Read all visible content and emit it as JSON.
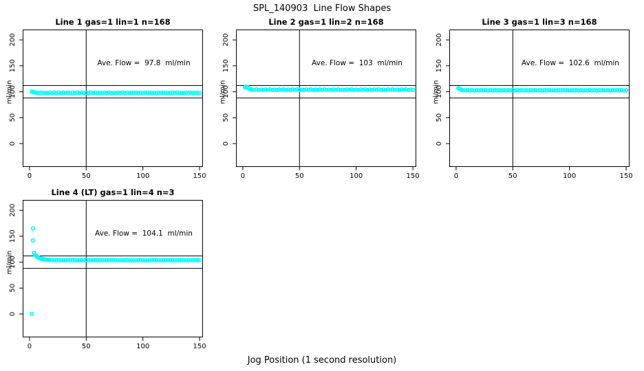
{
  "page": {
    "title": "SPL_140903  Line Flow Shapes",
    "xlabel": "Jog Position (1 second resolution)"
  },
  "colors": {
    "points": "#00FFFF",
    "lines": "#000000",
    "text": "#000000",
    "background": "#FFFFFF"
  },
  "chart_data": [
    {
      "type": "scatter",
      "title": "Line 1 gas=1 lin=1 n=168",
      "annotation": "Ave. Flow =  97.8  ml/min",
      "ave_flow_ml_min": 97.8,
      "ylabel": "ml/min",
      "marker": "open-circle",
      "x_ticks": [
        0,
        50,
        100,
        150
      ],
      "y_ticks": [
        0,
        50,
        100,
        150,
        200
      ],
      "xlim": [
        -6,
        153
      ],
      "ylim": [
        -45,
        220
      ],
      "ref_lines_h": [
        112,
        88
      ],
      "ref_line_v": 50,
      "points": [
        [
          2,
          100.3
        ],
        [
          3,
          99.8
        ],
        [
          4,
          99.0
        ],
        [
          5,
          98.5
        ],
        [
          6,
          98.3
        ],
        [
          8,
          97.8
        ],
        [
          10,
          98.4
        ],
        [
          12,
          97.7
        ],
        [
          14,
          98.1
        ],
        [
          16,
          97.6
        ],
        [
          18,
          98.3
        ],
        [
          20,
          97.8
        ],
        [
          22,
          98.4
        ],
        [
          24,
          97.7
        ],
        [
          26,
          98.1
        ],
        [
          28,
          97.6
        ],
        [
          30,
          98.3
        ],
        [
          32,
          97.8
        ],
        [
          34,
          98.4
        ],
        [
          36,
          97.7
        ],
        [
          38,
          98.1
        ],
        [
          40,
          97.6
        ],
        [
          42,
          98.3
        ],
        [
          44,
          97.8
        ],
        [
          46,
          98.4
        ],
        [
          48,
          97.7
        ],
        [
          50,
          98.1
        ],
        [
          52,
          97.6
        ],
        [
          54,
          98.3
        ],
        [
          56,
          97.8
        ],
        [
          58,
          98.4
        ],
        [
          60,
          97.7
        ],
        [
          62,
          98.1
        ],
        [
          64,
          97.6
        ],
        [
          66,
          98.3
        ],
        [
          68,
          97.8
        ],
        [
          70,
          98.4
        ],
        [
          72,
          97.7
        ],
        [
          74,
          98.1
        ],
        [
          76,
          97.6
        ],
        [
          78,
          98.3
        ],
        [
          80,
          97.8
        ],
        [
          82,
          98.4
        ],
        [
          84,
          97.7
        ],
        [
          86,
          98.1
        ],
        [
          88,
          97.6
        ],
        [
          90,
          98.3
        ],
        [
          92,
          97.8
        ],
        [
          94,
          98.4
        ],
        [
          96,
          97.7
        ],
        [
          98,
          98.1
        ],
        [
          100,
          97.6
        ],
        [
          102,
          98.3
        ],
        [
          104,
          97.8
        ],
        [
          106,
          98.4
        ],
        [
          108,
          97.7
        ],
        [
          110,
          98.1
        ],
        [
          112,
          97.6
        ],
        [
          114,
          98.3
        ],
        [
          116,
          97.8
        ],
        [
          118,
          98.4
        ],
        [
          120,
          97.7
        ],
        [
          122,
          98.1
        ],
        [
          124,
          97.6
        ],
        [
          126,
          98.3
        ],
        [
          128,
          97.8
        ],
        [
          130,
          98.4
        ],
        [
          132,
          97.7
        ],
        [
          134,
          98.1
        ],
        [
          136,
          97.6
        ],
        [
          138,
          98.3
        ],
        [
          140,
          97.8
        ],
        [
          142,
          98.4
        ],
        [
          144,
          97.7
        ],
        [
          146,
          98.1
        ],
        [
          148,
          97.6
        ],
        [
          150,
          98.0
        ]
      ]
    },
    {
      "type": "scatter",
      "title": "Line 2 gas=1 lin=2 n=168",
      "annotation": "Ave. Flow =  103  ml/min",
      "ave_flow_ml_min": 103,
      "ylabel": "ml/min",
      "marker": "open-circle",
      "x_ticks": [
        0,
        50,
        100,
        150
      ],
      "y_ticks": [
        0,
        50,
        100,
        150,
        200
      ],
      "xlim": [
        -6,
        153
      ],
      "ylim": [
        -45,
        220
      ],
      "ref_lines_h": [
        112,
        88
      ],
      "ref_line_v": 50,
      "points": [
        [
          2,
          108.5
        ],
        [
          3,
          110.0
        ],
        [
          4,
          109.2
        ],
        [
          5,
          106.8
        ],
        [
          6,
          105.4
        ],
        [
          7,
          104.6
        ],
        [
          8,
          104.3
        ],
        [
          10,
          103.8
        ],
        [
          12,
          104.4
        ],
        [
          14,
          103.7
        ],
        [
          16,
          104.1
        ],
        [
          18,
          103.6
        ],
        [
          20,
          104.3
        ],
        [
          22,
          103.8
        ],
        [
          24,
          104.4
        ],
        [
          26,
          103.7
        ],
        [
          28,
          104.1
        ],
        [
          30,
          103.6
        ],
        [
          32,
          104.3
        ],
        [
          34,
          103.8
        ],
        [
          36,
          104.4
        ],
        [
          38,
          103.7
        ],
        [
          40,
          104.1
        ],
        [
          42,
          103.6
        ],
        [
          44,
          104.3
        ],
        [
          46,
          103.8
        ],
        [
          48,
          104.4
        ],
        [
          50,
          103.7
        ],
        [
          52,
          104.1
        ],
        [
          54,
          103.6
        ],
        [
          56,
          104.3
        ],
        [
          58,
          103.8
        ],
        [
          60,
          104.4
        ],
        [
          62,
          103.7
        ],
        [
          64,
          104.1
        ],
        [
          66,
          103.6
        ],
        [
          68,
          104.3
        ],
        [
          70,
          103.8
        ],
        [
          72,
          104.4
        ],
        [
          74,
          103.7
        ],
        [
          76,
          104.1
        ],
        [
          78,
          103.6
        ],
        [
          80,
          104.3
        ],
        [
          82,
          103.8
        ],
        [
          84,
          104.4
        ],
        [
          86,
          103.7
        ],
        [
          88,
          104.1
        ],
        [
          90,
          103.6
        ],
        [
          92,
          104.3
        ],
        [
          94,
          103.8
        ],
        [
          96,
          104.4
        ],
        [
          98,
          103.7
        ],
        [
          100,
          104.1
        ],
        [
          102,
          103.6
        ],
        [
          104,
          104.3
        ],
        [
          106,
          103.8
        ],
        [
          108,
          104.4
        ],
        [
          110,
          103.7
        ],
        [
          112,
          104.1
        ],
        [
          114,
          103.6
        ],
        [
          116,
          104.3
        ],
        [
          118,
          103.8
        ],
        [
          120,
          104.4
        ],
        [
          122,
          103.7
        ],
        [
          124,
          104.1
        ],
        [
          126,
          103.6
        ],
        [
          128,
          104.3
        ],
        [
          130,
          103.8
        ],
        [
          132,
          104.4
        ],
        [
          134,
          103.7
        ],
        [
          136,
          104.1
        ],
        [
          138,
          103.6
        ],
        [
          140,
          104.3
        ],
        [
          142,
          103.8
        ],
        [
          144,
          104.4
        ],
        [
          146,
          103.7
        ],
        [
          148,
          104.1
        ],
        [
          150,
          103.9
        ]
      ]
    },
    {
      "type": "scatter",
      "title": "Line 3 gas=1 lin=3 n=168",
      "annotation": "Ave. Flow =  102.6  ml/min",
      "ave_flow_ml_min": 102.6,
      "ylabel": "ml/min",
      "marker": "open-circle",
      "x_ticks": [
        0,
        50,
        100,
        150
      ],
      "y_ticks": [
        0,
        50,
        100,
        150,
        200
      ],
      "xlim": [
        -6,
        153
      ],
      "ylim": [
        -45,
        220
      ],
      "ref_lines_h": [
        112,
        88
      ],
      "ref_line_v": 50,
      "points": [
        [
          2,
          106.8
        ],
        [
          3,
          105.6
        ],
        [
          4,
          104.4
        ],
        [
          5,
          103.8
        ],
        [
          6,
          103.3
        ],
        [
          8,
          102.8
        ],
        [
          10,
          103.4
        ],
        [
          12,
          102.7
        ],
        [
          14,
          103.1
        ],
        [
          16,
          102.6
        ],
        [
          18,
          103.3
        ],
        [
          20,
          102.8
        ],
        [
          22,
          103.4
        ],
        [
          24,
          102.7
        ],
        [
          26,
          103.1
        ],
        [
          28,
          102.6
        ],
        [
          30,
          103.3
        ],
        [
          32,
          102.8
        ],
        [
          34,
          103.4
        ],
        [
          36,
          102.7
        ],
        [
          38,
          103.1
        ],
        [
          40,
          102.6
        ],
        [
          42,
          103.3
        ],
        [
          44,
          102.8
        ],
        [
          46,
          103.4
        ],
        [
          48,
          102.7
        ],
        [
          50,
          103.1
        ],
        [
          52,
          102.6
        ],
        [
          54,
          103.3
        ],
        [
          56,
          102.8
        ],
        [
          58,
          103.4
        ],
        [
          60,
          102.7
        ],
        [
          62,
          103.1
        ],
        [
          64,
          102.6
        ],
        [
          66,
          103.3
        ],
        [
          68,
          102.8
        ],
        [
          70,
          103.4
        ],
        [
          72,
          102.7
        ],
        [
          74,
          103.1
        ],
        [
          76,
          102.6
        ],
        [
          78,
          103.3
        ],
        [
          80,
          102.8
        ],
        [
          82,
          103.4
        ],
        [
          84,
          102.7
        ],
        [
          86,
          103.1
        ],
        [
          88,
          102.6
        ],
        [
          90,
          103.3
        ],
        [
          92,
          102.8
        ],
        [
          94,
          103.4
        ],
        [
          96,
          102.7
        ],
        [
          98,
          103.1
        ],
        [
          100,
          102.6
        ],
        [
          102,
          103.3
        ],
        [
          104,
          102.8
        ],
        [
          106,
          103.4
        ],
        [
          108,
          102.7
        ],
        [
          110,
          103.1
        ],
        [
          112,
          102.6
        ],
        [
          114,
          103.3
        ],
        [
          116,
          102.8
        ],
        [
          118,
          103.4
        ],
        [
          120,
          102.7
        ],
        [
          122,
          103.1
        ],
        [
          124,
          102.6
        ],
        [
          126,
          103.3
        ],
        [
          128,
          102.8
        ],
        [
          130,
          103.4
        ],
        [
          132,
          102.7
        ],
        [
          134,
          103.1
        ],
        [
          136,
          102.6
        ],
        [
          138,
          103.3
        ],
        [
          140,
          102.8
        ],
        [
          142,
          103.4
        ],
        [
          144,
          102.7
        ],
        [
          146,
          103.1
        ],
        [
          148,
          102.6
        ],
        [
          150,
          103.0
        ]
      ]
    },
    {
      "type": "scatter",
      "title": "Line 4 (LT) gas=1 lin=4 n=3",
      "annotation": "Ave. Flow =  104.1  ml/min",
      "ave_flow_ml_min": 104.1,
      "ylabel": "ml/min",
      "marker": "open-circle",
      "x_ticks": [
        0,
        50,
        100,
        150
      ],
      "y_ticks": [
        0,
        50,
        100,
        150,
        200
      ],
      "xlim": [
        -6,
        153
      ],
      "ylim": [
        -45,
        220
      ],
      "ref_lines_h": [
        112,
        88
      ],
      "ref_line_v": 50,
      "points": [
        [
          2,
          0
        ],
        [
          3,
          165
        ],
        [
          3,
          142
        ],
        [
          4,
          118
        ],
        [
          5,
          113.5
        ],
        [
          6,
          111.5
        ],
        [
          7,
          110.0
        ],
        [
          8,
          108.8
        ],
        [
          9,
          107.8
        ],
        [
          10,
          107.0
        ],
        [
          11,
          106.3
        ],
        [
          12,
          105.8
        ],
        [
          13,
          105.3
        ],
        [
          14,
          105.0
        ],
        [
          15,
          104.7
        ],
        [
          16,
          104.5
        ],
        [
          17,
          104.3
        ],
        [
          18,
          104.2
        ],
        [
          20,
          104.0
        ],
        [
          22,
          104.1
        ],
        [
          24,
          103.6
        ],
        [
          26,
          104.2
        ],
        [
          28,
          103.5
        ],
        [
          30,
          103.9
        ],
        [
          32,
          103.4
        ],
        [
          34,
          104.1
        ],
        [
          36,
          103.6
        ],
        [
          38,
          104.2
        ],
        [
          40,
          103.5
        ],
        [
          42,
          103.9
        ],
        [
          44,
          103.4
        ],
        [
          46,
          104.1
        ],
        [
          48,
          103.6
        ],
        [
          50,
          104.2
        ],
        [
          52,
          103.5
        ],
        [
          54,
          103.9
        ],
        [
          56,
          103.4
        ],
        [
          58,
          104.1
        ],
        [
          60,
          103.6
        ],
        [
          62,
          104.2
        ],
        [
          64,
          103.5
        ],
        [
          66,
          103.9
        ],
        [
          68,
          103.4
        ],
        [
          70,
          104.1
        ],
        [
          72,
          103.6
        ],
        [
          74,
          104.2
        ],
        [
          76,
          103.5
        ],
        [
          78,
          103.9
        ],
        [
          80,
          103.4
        ],
        [
          82,
          104.1
        ],
        [
          84,
          103.6
        ],
        [
          86,
          104.2
        ],
        [
          88,
          103.5
        ],
        [
          90,
          103.9
        ],
        [
          92,
          103.4
        ],
        [
          94,
          104.1
        ],
        [
          96,
          103.6
        ],
        [
          98,
          104.2
        ],
        [
          100,
          103.5
        ],
        [
          102,
          103.9
        ],
        [
          104,
          103.4
        ],
        [
          106,
          104.1
        ],
        [
          108,
          103.6
        ],
        [
          110,
          104.2
        ],
        [
          112,
          103.5
        ],
        [
          114,
          103.9
        ],
        [
          116,
          103.4
        ],
        [
          118,
          104.1
        ],
        [
          120,
          103.6
        ],
        [
          122,
          104.2
        ],
        [
          124,
          103.5
        ],
        [
          126,
          103.9
        ],
        [
          128,
          103.4
        ],
        [
          130,
          104.1
        ],
        [
          132,
          103.6
        ],
        [
          134,
          104.2
        ],
        [
          136,
          103.5
        ],
        [
          138,
          103.9
        ],
        [
          140,
          103.4
        ],
        [
          142,
          104.1
        ],
        [
          144,
          103.6
        ],
        [
          146,
          104.2
        ],
        [
          148,
          103.5
        ],
        [
          150,
          103.8
        ]
      ]
    }
  ]
}
